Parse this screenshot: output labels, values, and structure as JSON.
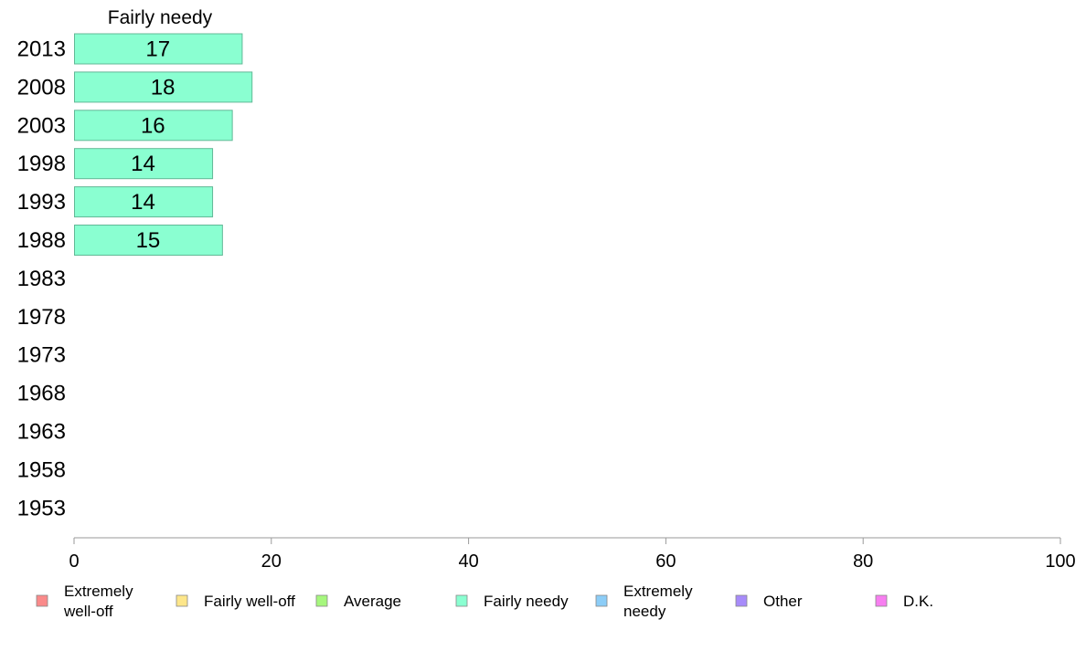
{
  "chart_data": {
    "type": "bar",
    "orientation": "horizontal",
    "panel_title": "Fairly needy",
    "categories": [
      "2013",
      "2008",
      "2003",
      "1998",
      "1993",
      "1988",
      "1983",
      "1978",
      "1973",
      "1968",
      "1963",
      "1958",
      "1953"
    ],
    "series": [
      {
        "name": "Fairly needy",
        "color": "#8affd1",
        "values": [
          17,
          18,
          16,
          14,
          14,
          15,
          null,
          null,
          null,
          null,
          null,
          null,
          null
        ],
        "labels": [
          "17",
          "18",
          "16",
          "14",
          "14",
          "15",
          "",
          "",
          "",
          "",
          "",
          "",
          ""
        ]
      }
    ],
    "xlim": [
      0,
      100
    ],
    "xticks": [
      "0",
      "20",
      "40",
      "60",
      "80",
      "100"
    ],
    "grid": false,
    "legend_placement": "bottom",
    "legend": [
      {
        "label_lines": [
          "Extremely",
          "well-off"
        ],
        "color": "#fa8a8a"
      },
      {
        "label_lines": [
          "Fairly well-off"
        ],
        "color": "#fde68a"
      },
      {
        "label_lines": [
          "Average"
        ],
        "color": "#a6f77d"
      },
      {
        "label_lines": [
          "Fairly needy"
        ],
        "color": "#8affd1"
      },
      {
        "label_lines": [
          "Extremely",
          "needy"
        ],
        "color": "#8ccdf7"
      },
      {
        "label_lines": [
          "Other"
        ],
        "color": "#a78bfa"
      },
      {
        "label_lines": [
          "D.K."
        ],
        "color": "#f77ef0"
      }
    ]
  }
}
